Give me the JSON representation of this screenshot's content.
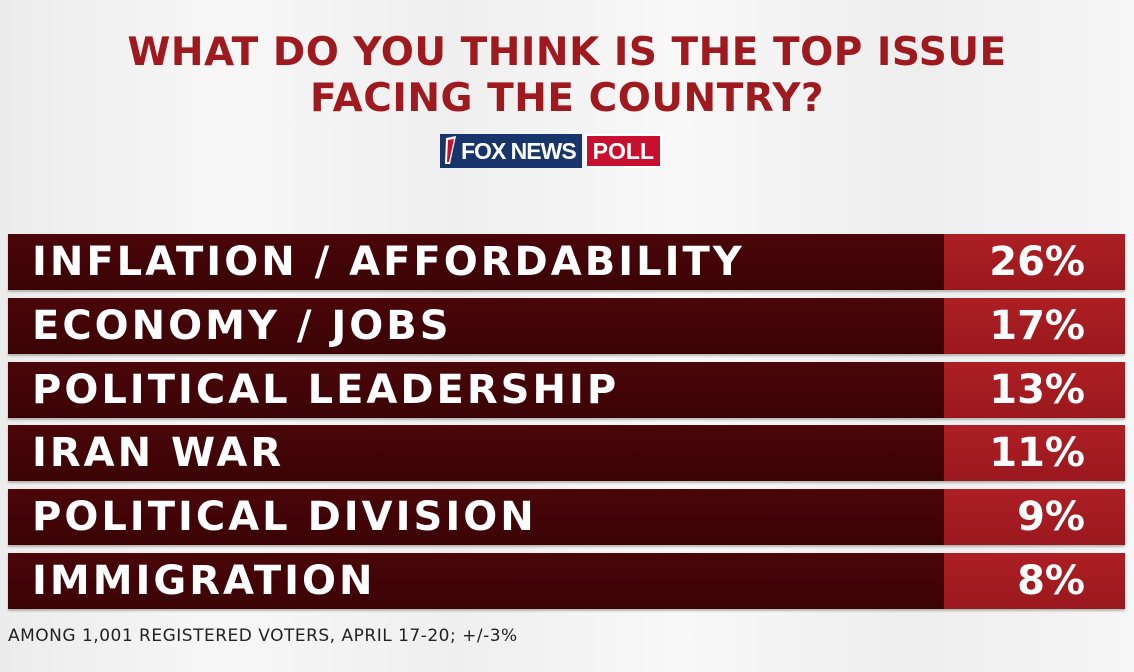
{
  "chart_data": {
    "type": "bar",
    "title": "WHAT DO YOU THINK IS THE TOP ISSUE FACING THE COUNTRY?",
    "title_lines": [
      "WHAT DO YOU THINK IS THE TOP ISSUE",
      "FACING THE COUNTRY?"
    ],
    "categories": [
      "INFLATION / AFFORDABILITY",
      "ECONOMY / JOBS",
      "POLITICAL LEADERSHIP",
      "IRAN WAR",
      "POLITICAL DIVISION",
      "IMMIGRATION"
    ],
    "values": [
      26,
      17,
      13,
      11,
      9,
      8
    ],
    "value_labels": [
      "26%",
      "17%",
      "13%",
      "11%",
      "9%",
      "8%"
    ],
    "unit": "%"
  },
  "logo": {
    "brand": "FOX NEWS",
    "suffix": "POLL"
  },
  "footnote": "AMONG 1,001 REGISTERED VOTERS, APRIL 17-20; +/-3%",
  "colors": {
    "title": "#9e1a1f",
    "label_bar": "#3f0407",
    "value_bar": "#a51c21",
    "logo_blue": "#17356b",
    "logo_red": "#c8102e"
  }
}
